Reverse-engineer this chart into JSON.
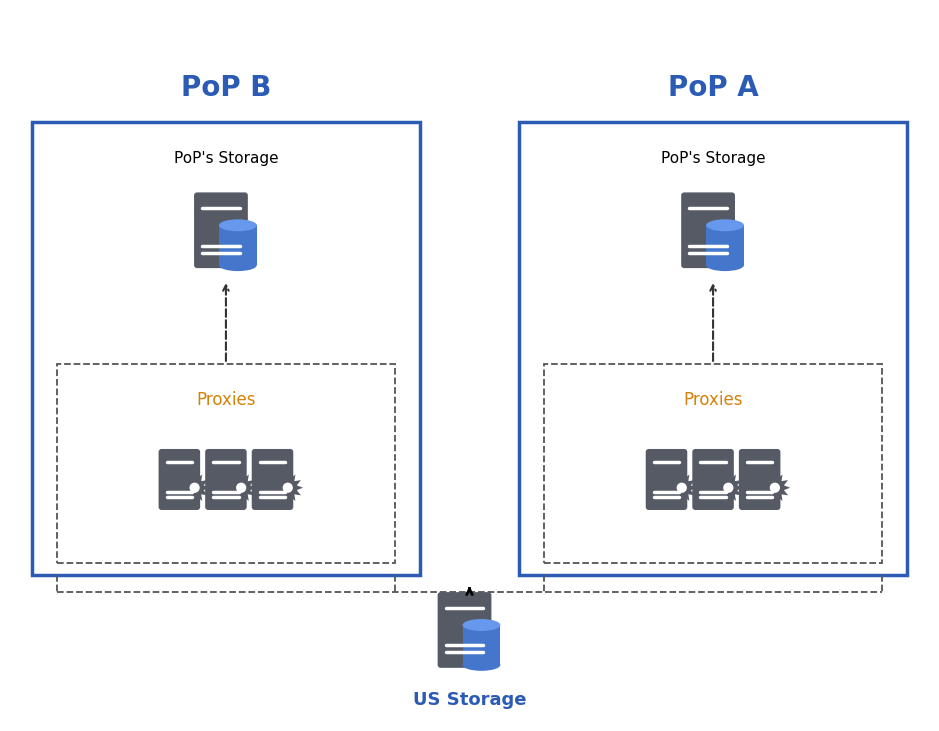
{
  "bg_color": "#ffffff",
  "box_border_color": "#2B5BB5",
  "box_fill_color": "#ffffff",
  "dashed_border_color": "#555555",
  "server_color": "#555A65",
  "db_body_color": "#4477CC",
  "db_top_color": "#6699EE",
  "text_color": "#000000",
  "label_color": "#2B5BB5",
  "proxies_color": "#D4820A",
  "pop_b_label": "PoP B",
  "pop_a_label": "PoP A",
  "storage_label": "PoP's Storage",
  "proxies_label": "Proxies",
  "us_storage_label": "US Storage"
}
